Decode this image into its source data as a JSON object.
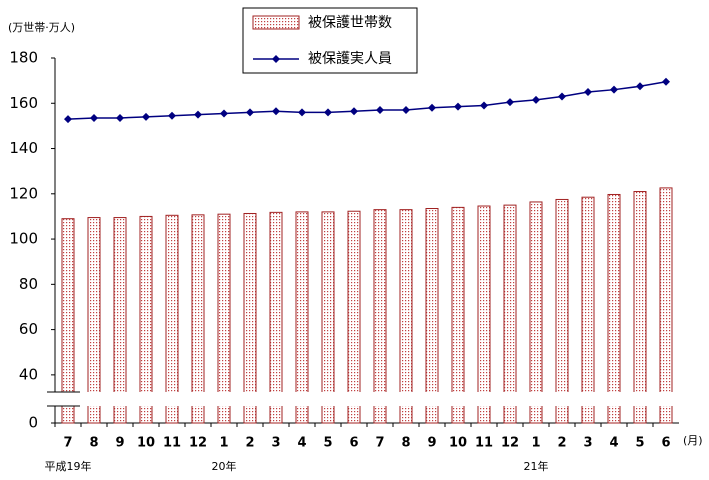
{
  "chart_data": {
    "type": "bar",
    "unit_label": "(万世帯·万人)",
    "x_unit_label": "(月)",
    "categories": [
      "7",
      "8",
      "9",
      "10",
      "11",
      "12",
      "1",
      "2",
      "3",
      "4",
      "5",
      "6",
      "7",
      "8",
      "9",
      "10",
      "11",
      "12",
      "1",
      "2",
      "3",
      "4",
      "5",
      "6"
    ],
    "years": [
      "平成19年",
      null,
      null,
      null,
      null,
      null,
      "20年",
      null,
      null,
      null,
      null,
      null,
      null,
      null,
      null,
      null,
      null,
      null,
      "21年",
      null,
      null,
      null,
      null,
      null
    ],
    "series": [
      {
        "name": "被保護世帯数",
        "type": "bar",
        "color": "#a02020",
        "values": [
          109,
          109.5,
          109.5,
          110,
          110.5,
          110.7,
          111,
          111.3,
          111.8,
          112,
          112,
          112.3,
          113,
          113,
          113.5,
          114,
          114.6,
          115,
          116.4,
          117.5,
          118.5,
          119.7,
          121,
          122.6
        ]
      },
      {
        "name": "被保護実人員",
        "type": "line",
        "color": "#000080",
        "values": [
          153,
          153.5,
          153.5,
          154,
          154.5,
          155,
          155.5,
          156,
          156.5,
          156,
          156,
          156.5,
          157,
          157,
          158,
          158.5,
          159,
          160.5,
          161.5,
          163,
          165,
          166,
          167.5,
          169.5
        ]
      }
    ],
    "ylim": [
      0,
      180
    ],
    "y_break": [
      0,
      30
    ],
    "yticks": [
      0,
      40,
      60,
      80,
      100,
      120,
      140,
      160,
      180
    ],
    "grid": false
  }
}
